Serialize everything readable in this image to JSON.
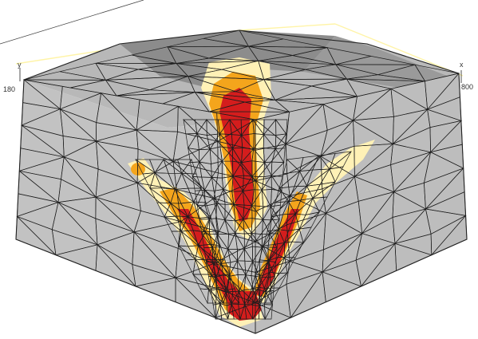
{
  "axes": {
    "left_value": "180",
    "right_value": "800",
    "left_axis_letter": "y",
    "right_axis_letter": "x"
  },
  "colors": {
    "background": "#ffffff",
    "mesh_face": "#bdbdbd",
    "mesh_face_shadow": "#8f8f8f",
    "mesh_line": "#1e1e1e",
    "contour_low": "#fff1b6",
    "contour_mid": "#f4a51c",
    "contour_high": "#d41d1d",
    "bounding_box_line": "#fff4a8"
  }
}
